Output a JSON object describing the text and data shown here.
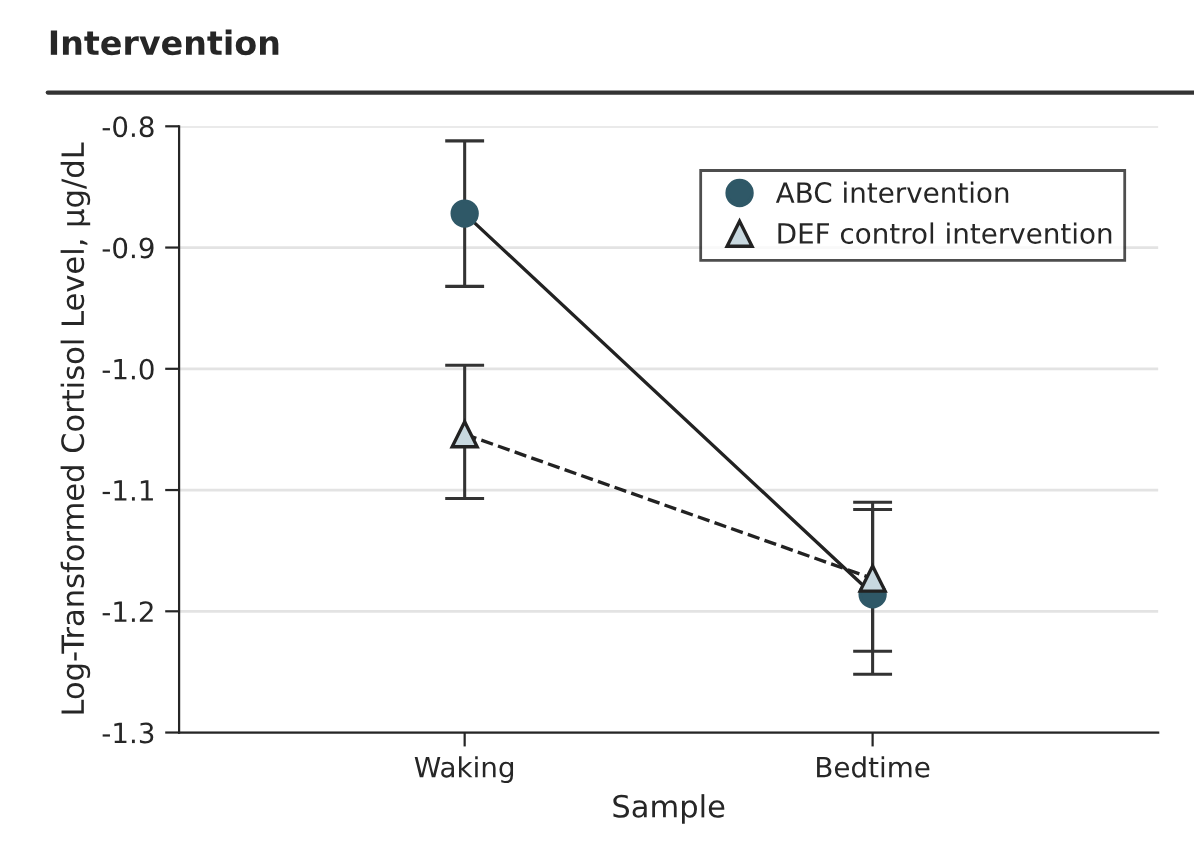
{
  "chart_data": {
    "type": "line",
    "title": "Intervention",
    "xlabel": "Sample",
    "ylabel": "Log-Transformed Cortisol Level, µg/dL",
    "categories": [
      "Waking",
      "Bedtime"
    ],
    "series": [
      {
        "name": "ABC intervention",
        "color": "#2f5867",
        "marker": "circle",
        "line_style": "solid",
        "values": [
          -0.872,
          -1.186
        ],
        "errors": [
          [
            -0.932,
            -0.812
          ],
          [
            -1.252,
            -1.116
          ]
        ]
      },
      {
        "name": "DEF control intervention",
        "color": "#c8d8df",
        "marker": "triangle",
        "line_style": "dashed",
        "values": [
          -1.054,
          -1.173
        ],
        "errors": [
          [
            -1.107,
            -0.997
          ],
          [
            -1.233,
            -1.11
          ]
        ]
      }
    ],
    "ylim": [
      -1.3,
      -0.8
    ],
    "yticks": [
      -1.3,
      -1.2,
      -1.1,
      {
        "value": -1,
        "label": "-1.0"
      },
      -0.9,
      -0.8
    ],
    "grid": "y",
    "legend": "top right"
  }
}
